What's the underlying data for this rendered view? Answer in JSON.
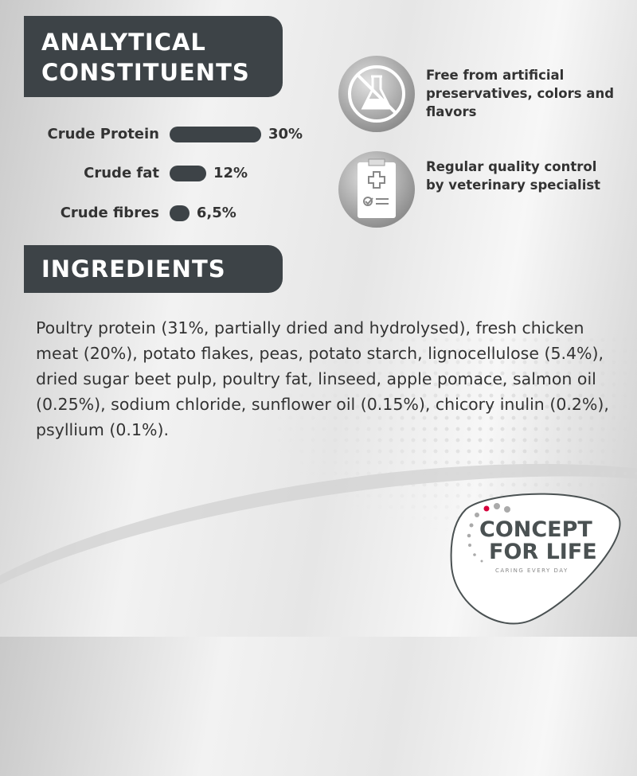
{
  "analytical": {
    "title_line1": "ANALYTICAL",
    "title_line2": "CONSTITUENTS",
    "rows": [
      {
        "label": "Crude Protein",
        "value": "30%",
        "percent": 30
      },
      {
        "label": "Crude fat",
        "value": "12%",
        "percent": 12
      },
      {
        "label": "Crude fibres",
        "value": "6,5%",
        "percent": 6.5
      }
    ]
  },
  "features": [
    {
      "icon": "no-chemicals-flask-icon",
      "text": "Free from artificial preservatives, colors and flavors"
    },
    {
      "icon": "clipboard-checklist-icon",
      "text": "Regular quality control by veterinary specialist"
    }
  ],
  "ingredients": {
    "title": "INGREDIENTS",
    "text": "Poultry protein (31%, partially dried and hydrolysed), fresh chicken meat (20%), potato flakes, peas, potato starch, lignocellulose (5.4%), dried sugar beet pulp, poultry fat, linseed, apple pomace, salmon oil (0.25%), sodium chloride, sunflower oil (0.15%), chicory inulin (0.2%), psyllium (0.1%)."
  },
  "logo": {
    "line1": "CONCEPT",
    "line2": "FOR LIFE",
    "tagline": "CARING EVERY DAY"
  },
  "colors": {
    "dark": "#3d4347",
    "accent": "#d6003a"
  }
}
